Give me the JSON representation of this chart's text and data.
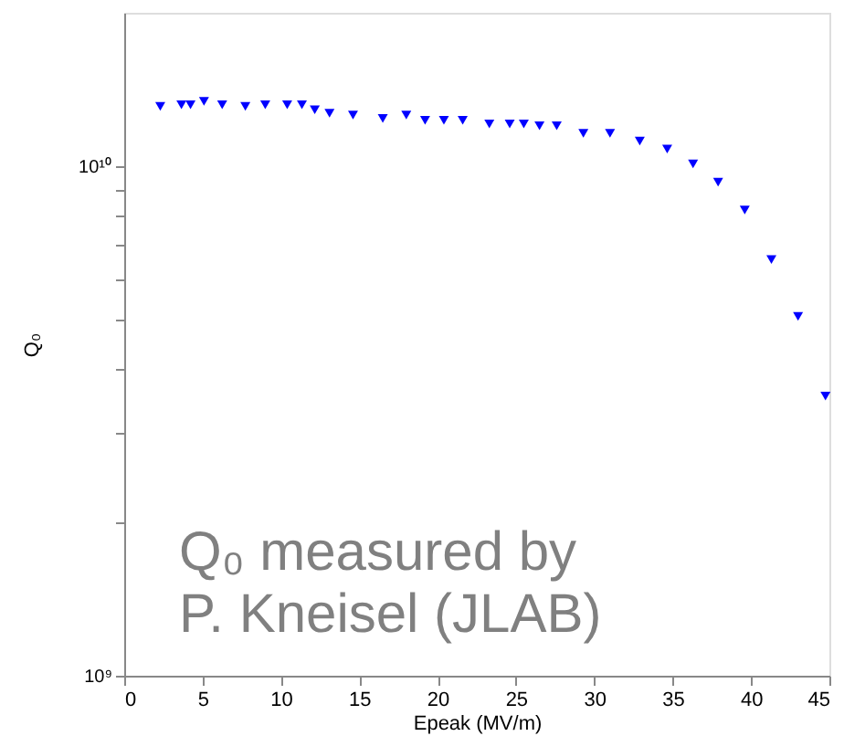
{
  "chart_data": {
    "type": "scatter",
    "xlabel": "Epeak (MV/m)",
    "ylabel": "Q₀",
    "annotations": [
      "Q₀ measured by\nP. Kneisel (JLAB)"
    ],
    "x": [
      2.3,
      3.65,
      4.23,
      5.09,
      6.25,
      7.73,
      9.0,
      10.4,
      11.34,
      12.16,
      13.1,
      14.6,
      16.5,
      18.0,
      19.2,
      20.4,
      21.6,
      23.3,
      24.6,
      25.5,
      26.5,
      27.6,
      29.3,
      31.0,
      32.9,
      34.65,
      36.3,
      37.9,
      39.6,
      41.3,
      43.0,
      44.75
    ],
    "series": [
      {
        "color": "#0000ff",
        "values": [
          13100000000.0,
          13200000000.0,
          13200000000.0,
          13400000000.0,
          13200000000.0,
          13100000000.0,
          13200000000.0,
          13200000000.0,
          13200000000.0,
          12900000000.0,
          12700000000.0,
          12600000000.0,
          12400000000.0,
          12600000000.0,
          12300000000.0,
          12300000000.0,
          12300000000.0,
          12100000000.0,
          12100000000.0,
          12100000000.0,
          12000000000.0,
          12000000000.0,
          11600000000.0,
          11600000000.0,
          11200000000.0,
          10800000000.0,
          10100000000.0,
          9300000000.0,
          8200000000.0,
          6560000000.0,
          5070000000.0,
          3540000000.0
        ]
      }
    ],
    "xlim": [
      0,
      45
    ],
    "xticks": [
      0,
      5,
      10,
      15,
      20,
      25,
      30,
      35,
      40,
      45
    ],
    "ylim": [
      1000000000.0,
      20000000000.0
    ],
    "log": true,
    "yticks": [
      {
        "value": 1000000000.0,
        "label": "10⁹"
      },
      {
        "value": 2000000000.0,
        "label": null
      },
      {
        "value": 3000000000.0,
        "label": null
      },
      {
        "value": 4000000000.0,
        "label": null
      },
      {
        "value": 5000000000.0,
        "label": null
      },
      {
        "value": 6000000000.0,
        "label": null
      },
      {
        "value": 7000000000.0,
        "label": null
      },
      {
        "value": 8000000000.0,
        "label": null
      },
      {
        "value": 9000000000.0,
        "label": null
      },
      {
        "value": 10000000000.0,
        "label": "10¹⁰"
      }
    ],
    "marker": "triangle",
    "grid": false
  }
}
